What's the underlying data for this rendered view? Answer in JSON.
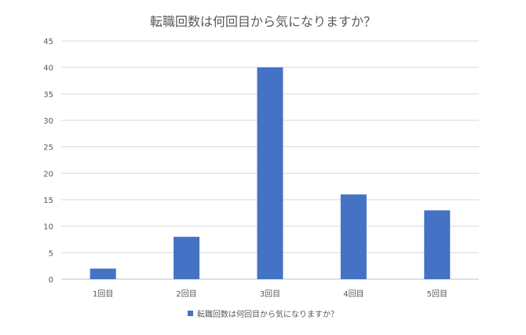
{
  "chart_data": {
    "type": "bar",
    "title": "転職回数は何回目から気になりますか？",
    "xlabel": "",
    "ylabel": "",
    "categories": [
      "1回目",
      "2回目",
      "3回目",
      "4回目",
      "5回目"
    ],
    "series": [
      {
        "name": "転職回数は何回目から気になりますか？",
        "values": [
          2,
          8,
          40,
          16,
          13
        ],
        "color": "#4472C4"
      }
    ],
    "ylim": [
      0,
      45
    ],
    "yticks": [
      0,
      5,
      10,
      15,
      20,
      25,
      30,
      35,
      40,
      45
    ],
    "grid": true,
    "legend": "bottom",
    "colors": {
      "gridline": "#D9D9D9",
      "axis": "#BFBFBF",
      "text": "#595959"
    }
  }
}
